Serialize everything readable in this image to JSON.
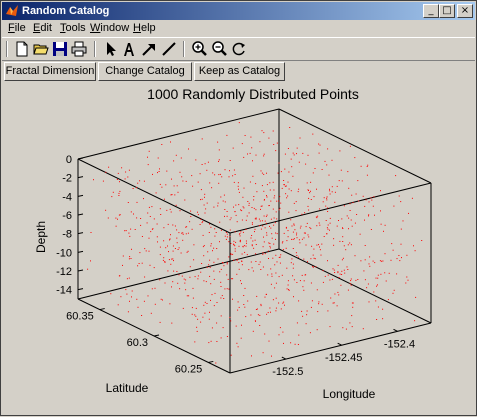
{
  "window": {
    "title": "Random Catalog",
    "minimize_glyph": "_",
    "maximize_glyph": "□",
    "close_glyph": "×"
  },
  "menu": {
    "items": [
      {
        "label": "File",
        "key": "F"
      },
      {
        "label": "Edit",
        "key": "E"
      },
      {
        "label": "Tools",
        "key": "T"
      },
      {
        "label": "Window",
        "key": "W"
      },
      {
        "label": "Help",
        "key": "H"
      }
    ]
  },
  "toolbar": {
    "icons": [
      "new-file-icon",
      "open-folder-icon",
      "save-icon",
      "print-icon",
      "arrow-pointer-icon",
      "text-tool-icon",
      "arrow-tool-icon",
      "line-tool-icon",
      "zoom-in-icon",
      "zoom-out-icon",
      "rotate-icon"
    ]
  },
  "buttons": {
    "fractal": "Fractal Dimension",
    "change": "Change Catalog",
    "keep": "Keep as Catalog"
  },
  "colors": {
    "titlebar_start": "#0a246a",
    "titlebar_end": "#a6caf0",
    "point_color": "#ff0000"
  },
  "chart_data": {
    "type": "scatter",
    "title": "1000 Randomly Distributed Points",
    "xlabel": "Longitude",
    "ylabel": "Latitude",
    "zlabel": "Depth",
    "xlim": [
      -152.55,
      -152.37
    ],
    "ylim": [
      60.23,
      60.37
    ],
    "zlim": [
      -15,
      0
    ],
    "xticks": [
      -152.5,
      -152.45,
      -152.4
    ],
    "yticks": [
      60.25,
      60.3,
      60.35
    ],
    "zticks": [
      0,
      -2,
      -4,
      -6,
      -8,
      -10,
      -12,
      -14
    ],
    "xtick_labels": [
      "-152.5",
      "-152.45",
      "-152.4"
    ],
    "ytick_labels": [
      "60.25",
      "60.3",
      "60.35"
    ],
    "ztick_labels": [
      "0",
      "-2",
      "-4",
      "-6",
      "-8",
      "-10",
      "-12",
      "-14"
    ],
    "point_count": 1000,
    "grid": false,
    "box": true
  }
}
